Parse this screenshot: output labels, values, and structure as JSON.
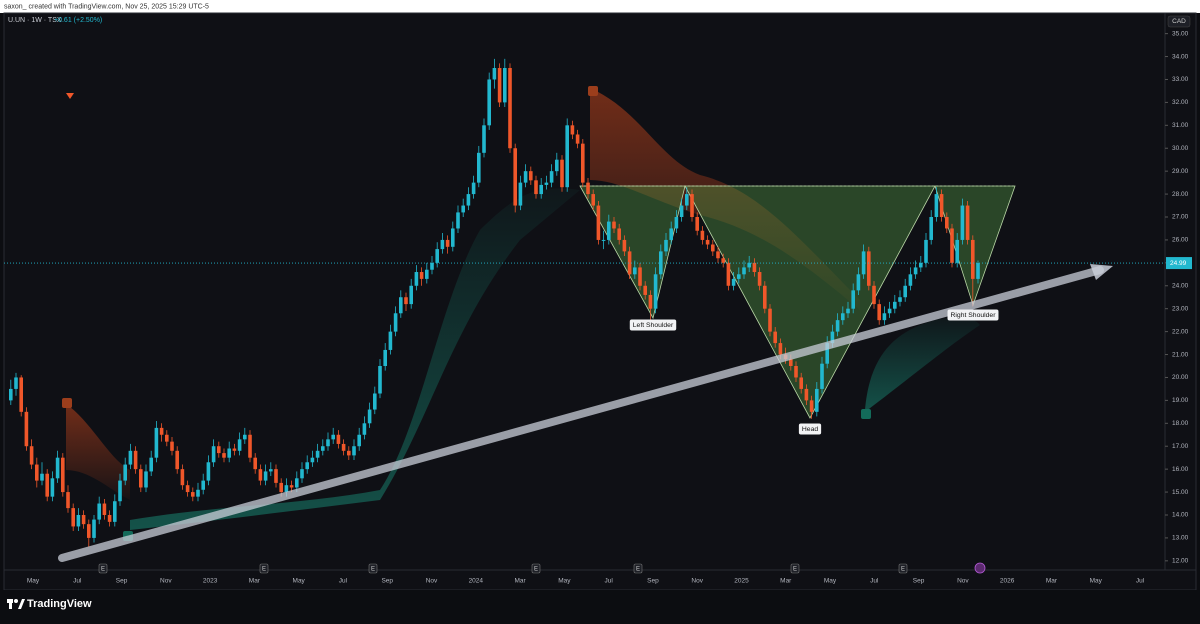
{
  "header": {
    "credit": "saxon_ created with TradingView.com, Nov 25, 2025 15:29 UTC-5"
  },
  "chart_data": {
    "type": "candlestick",
    "title": "U.UN · 1W · TSX",
    "change": "+0.61 (+2.50%)",
    "currency": "CAD",
    "up_color": "#22b8cf",
    "down_color": "#f0572a",
    "ylim": [
      11.6,
      35.9
    ],
    "yticks": [
      {
        "value": 12,
        "label": "12.00"
      },
      {
        "value": 13,
        "label": "13.00"
      },
      {
        "value": 14,
        "label": "14.00"
      },
      {
        "value": 15,
        "label": "15.00"
      },
      {
        "value": 16,
        "label": "16.00"
      },
      {
        "value": 17,
        "label": "17.00"
      },
      {
        "value": 18,
        "label": "18.00"
      },
      {
        "value": 19,
        "label": "19.00"
      },
      {
        "value": 20,
        "label": "20.00"
      },
      {
        "value": 21,
        "label": "21.00"
      },
      {
        "value": 22,
        "label": "22.00"
      },
      {
        "value": 23,
        "label": "23.00"
      },
      {
        "value": 24,
        "label": "24.00"
      },
      {
        "value": 25,
        "label": "25.00"
      },
      {
        "value": 26,
        "label": "26.00"
      },
      {
        "value": 27,
        "label": "27.00"
      },
      {
        "value": 28,
        "label": "28.00"
      },
      {
        "value": 29,
        "label": "29.00"
      },
      {
        "value": 30,
        "label": "30.00"
      },
      {
        "value": 31,
        "label": "31.00"
      },
      {
        "value": 32,
        "label": "32.00"
      },
      {
        "value": 33,
        "label": "33.00"
      },
      {
        "value": 34,
        "label": "34.00"
      },
      {
        "value": 35,
        "label": "35.00"
      }
    ],
    "last_price": {
      "value": 24.99,
      "label": "24.99"
    },
    "x_labels": [
      "May",
      "Jul",
      "Sep",
      "Nov",
      "2023",
      "Mar",
      "May",
      "Jul",
      "Sep",
      "Nov",
      "2024",
      "Mar",
      "May",
      "Jul",
      "Sep",
      "Nov",
      "2025",
      "Mar",
      "May",
      "Jul",
      "Sep",
      "Nov",
      "2026",
      "Mar",
      "May",
      "Jul"
    ],
    "events": [
      "E",
      "E",
      "E",
      "E",
      "E",
      "E",
      "E"
    ],
    "annotations": [
      "Left Shoulder",
      "Head",
      "Right Shoulder"
    ],
    "candles": [
      [
        19.0,
        19.9,
        18.8,
        19.5
      ],
      [
        19.5,
        20.2,
        19.2,
        20.0
      ],
      [
        20.0,
        20.1,
        18.3,
        18.5
      ],
      [
        18.5,
        18.7,
        16.8,
        17.0
      ],
      [
        17.0,
        17.3,
        16.0,
        16.2
      ],
      [
        16.2,
        16.5,
        15.2,
        15.5
      ],
      [
        15.5,
        16.3,
        15.3,
        15.8
      ],
      [
        15.8,
        16.0,
        14.6,
        14.8
      ],
      [
        14.8,
        15.9,
        14.6,
        15.6
      ],
      [
        15.6,
        16.8,
        15.4,
        16.5
      ],
      [
        16.5,
        16.7,
        14.8,
        15.0
      ],
      [
        15.0,
        15.3,
        14.1,
        14.3
      ],
      [
        14.3,
        14.5,
        13.3,
        13.5
      ],
      [
        13.5,
        14.3,
        13.3,
        14.0
      ],
      [
        14.0,
        14.2,
        13.4,
        13.6
      ],
      [
        13.6,
        13.8,
        12.6,
        13.0
      ],
      [
        13.0,
        14.0,
        12.8,
        13.8
      ],
      [
        13.8,
        14.8,
        13.6,
        14.5
      ],
      [
        14.5,
        14.7,
        13.8,
        14.0
      ],
      [
        14.0,
        14.2,
        13.5,
        13.7
      ],
      [
        13.7,
        14.9,
        13.5,
        14.6
      ],
      [
        14.6,
        15.8,
        14.4,
        15.5
      ],
      [
        15.5,
        16.5,
        15.3,
        16.2
      ],
      [
        16.2,
        17.1,
        16.0,
        16.8
      ],
      [
        16.8,
        17.0,
        15.8,
        16.0
      ],
      [
        16.0,
        16.2,
        15.0,
        15.2
      ],
      [
        15.2,
        16.2,
        15.0,
        15.9
      ],
      [
        15.9,
        16.8,
        15.7,
        16.5
      ],
      [
        16.5,
        18.1,
        16.3,
        17.8
      ],
      [
        17.8,
        18.0,
        17.2,
        17.5
      ],
      [
        17.5,
        17.7,
        17.0,
        17.2
      ],
      [
        17.2,
        17.4,
        16.6,
        16.8
      ],
      [
        16.8,
        17.0,
        15.8,
        16.0
      ],
      [
        16.0,
        16.2,
        15.1,
        15.3
      ],
      [
        15.3,
        15.5,
        14.8,
        15.0
      ],
      [
        15.0,
        15.2,
        14.6,
        14.8
      ],
      [
        14.8,
        15.4,
        14.6,
        15.1
      ],
      [
        15.1,
        15.8,
        14.9,
        15.5
      ],
      [
        15.5,
        16.6,
        15.3,
        16.3
      ],
      [
        16.3,
        17.3,
        16.1,
        17.0
      ],
      [
        17.0,
        17.2,
        16.5,
        16.7
      ],
      [
        16.7,
        16.9,
        16.3,
        16.5
      ],
      [
        16.5,
        17.2,
        16.3,
        16.9
      ],
      [
        16.9,
        17.1,
        16.6,
        16.8
      ],
      [
        16.8,
        17.6,
        16.6,
        17.3
      ],
      [
        17.3,
        17.8,
        17.1,
        17.5
      ],
      [
        17.5,
        17.7,
        16.3,
        16.5
      ],
      [
        16.5,
        16.7,
        15.8,
        16.0
      ],
      [
        16.0,
        16.2,
        15.3,
        15.5
      ],
      [
        15.5,
        16.2,
        15.3,
        15.9
      ],
      [
        15.9,
        16.3,
        15.7,
        16.0
      ],
      [
        16.0,
        16.2,
        15.2,
        15.4
      ],
      [
        15.4,
        15.6,
        14.8,
        15.0
      ],
      [
        15.0,
        15.6,
        14.8,
        15.3
      ],
      [
        15.3,
        15.5,
        15.0,
        15.2
      ],
      [
        15.2,
        15.9,
        15.0,
        15.6
      ],
      [
        15.6,
        16.3,
        15.4,
        16.0
      ],
      [
        16.0,
        16.6,
        15.8,
        16.3
      ],
      [
        16.3,
        16.8,
        16.1,
        16.5
      ],
      [
        16.5,
        17.1,
        16.3,
        16.8
      ],
      [
        16.8,
        17.3,
        16.6,
        17.0
      ],
      [
        17.0,
        17.6,
        16.8,
        17.3
      ],
      [
        17.3,
        17.8,
        17.1,
        17.5
      ],
      [
        17.5,
        17.7,
        16.9,
        17.1
      ],
      [
        17.1,
        17.3,
        16.6,
        16.8
      ],
      [
        16.8,
        17.0,
        16.4,
        16.6
      ],
      [
        16.6,
        17.3,
        16.4,
        17.0
      ],
      [
        17.0,
        17.8,
        16.8,
        17.5
      ],
      [
        17.5,
        18.3,
        17.3,
        18.0
      ],
      [
        18.0,
        18.9,
        17.8,
        18.6
      ],
      [
        18.6,
        19.6,
        18.4,
        19.3
      ],
      [
        19.3,
        20.8,
        19.1,
        20.5
      ],
      [
        20.5,
        21.5,
        20.3,
        21.2
      ],
      [
        21.2,
        22.3,
        21.0,
        22.0
      ],
      [
        22.0,
        23.1,
        21.8,
        22.8
      ],
      [
        22.8,
        23.8,
        22.6,
        23.5
      ],
      [
        23.5,
        23.7,
        22.9,
        23.2
      ],
      [
        23.2,
        24.3,
        23.0,
        24.0
      ],
      [
        24.0,
        24.9,
        23.8,
        24.6
      ],
      [
        24.6,
        24.8,
        24.0,
        24.3
      ],
      [
        24.3,
        25.0,
        24.1,
        24.7
      ],
      [
        24.7,
        25.3,
        24.5,
        25.0
      ],
      [
        25.0,
        25.9,
        24.8,
        25.6
      ],
      [
        25.6,
        26.3,
        25.4,
        26.0
      ],
      [
        26.0,
        26.2,
        25.4,
        25.7
      ],
      [
        25.7,
        26.8,
        25.5,
        26.5
      ],
      [
        26.5,
        27.5,
        26.3,
        27.2
      ],
      [
        27.2,
        27.8,
        27.0,
        27.5
      ],
      [
        27.5,
        28.3,
        27.3,
        28.0
      ],
      [
        28.0,
        28.8,
        27.8,
        28.5
      ],
      [
        28.5,
        30.1,
        28.3,
        29.8
      ],
      [
        29.8,
        31.3,
        29.6,
        31.0
      ],
      [
        31.0,
        33.3,
        30.8,
        33.0
      ],
      [
        33.0,
        33.9,
        32.6,
        33.5
      ],
      [
        33.5,
        33.7,
        31.8,
        32.0
      ],
      [
        32.0,
        33.9,
        31.8,
        33.5
      ],
      [
        33.5,
        33.7,
        29.8,
        30.0
      ],
      [
        30.0,
        30.2,
        27.2,
        27.5
      ],
      [
        27.5,
        28.8,
        27.3,
        28.5
      ],
      [
        28.5,
        29.3,
        28.3,
        29.0
      ],
      [
        29.0,
        29.2,
        28.4,
        28.6
      ],
      [
        28.6,
        28.8,
        27.8,
        28.0
      ],
      [
        28.0,
        28.7,
        27.8,
        28.4
      ],
      [
        28.4,
        28.8,
        28.2,
        28.5
      ],
      [
        28.5,
        29.3,
        28.3,
        29.0
      ],
      [
        29.0,
        29.8,
        28.8,
        29.5
      ],
      [
        29.5,
        29.7,
        28.1,
        28.3
      ],
      [
        28.3,
        31.3,
        28.1,
        31.0
      ],
      [
        31.0,
        31.2,
        30.4,
        30.6
      ],
      [
        30.6,
        30.8,
        30.0,
        30.2
      ],
      [
        30.2,
        30.4,
        28.3,
        28.5
      ],
      [
        28.5,
        28.7,
        27.8,
        28.0
      ],
      [
        28.0,
        28.2,
        27.3,
        27.5
      ],
      [
        27.5,
        27.7,
        25.8,
        26.0
      ],
      [
        26.0,
        26.4,
        25.6,
        26.0
      ],
      [
        26.0,
        27.1,
        25.8,
        26.8
      ],
      [
        26.8,
        27.0,
        26.3,
        26.5
      ],
      [
        26.5,
        26.7,
        25.8,
        26.0
      ],
      [
        26.0,
        26.2,
        25.3,
        25.5
      ],
      [
        25.5,
        25.7,
        24.3,
        24.5
      ],
      [
        24.5,
        25.1,
        24.3,
        24.8
      ],
      [
        24.8,
        25.0,
        23.8,
        24.0
      ],
      [
        24.0,
        24.2,
        23.4,
        23.6
      ],
      [
        23.6,
        23.8,
        22.5,
        23.0
      ],
      [
        23.0,
        24.8,
        22.8,
        24.5
      ],
      [
        24.5,
        25.8,
        24.3,
        25.5
      ],
      [
        25.5,
        26.3,
        25.3,
        26.0
      ],
      [
        26.0,
        26.8,
        25.8,
        26.5
      ],
      [
        26.5,
        27.3,
        26.3,
        27.0
      ],
      [
        27.0,
        27.8,
        26.8,
        27.5
      ],
      [
        27.5,
        28.3,
        27.3,
        28.0
      ],
      [
        28.0,
        28.2,
        26.8,
        27.0
      ],
      [
        27.0,
        27.2,
        26.2,
        26.4
      ],
      [
        26.4,
        26.6,
        25.8,
        26.0
      ],
      [
        26.0,
        26.2,
        25.6,
        25.8
      ],
      [
        25.8,
        26.0,
        25.3,
        25.5
      ],
      [
        25.5,
        25.7,
        25.0,
        25.2
      ],
      [
        25.2,
        25.4,
        24.8,
        25.0
      ],
      [
        25.0,
        25.2,
        23.8,
        24.0
      ],
      [
        24.0,
        24.6,
        23.8,
        24.3
      ],
      [
        24.3,
        24.8,
        24.1,
        24.5
      ],
      [
        24.5,
        25.1,
        24.3,
        24.8
      ],
      [
        24.8,
        25.3,
        24.6,
        25.0
      ],
      [
        25.0,
        25.2,
        24.4,
        24.6
      ],
      [
        24.6,
        24.8,
        23.8,
        24.0
      ],
      [
        24.0,
        24.2,
        22.8,
        23.0
      ],
      [
        23.0,
        23.2,
        21.8,
        22.0
      ],
      [
        22.0,
        22.2,
        21.3,
        21.5
      ],
      [
        21.5,
        21.7,
        20.8,
        21.0
      ],
      [
        21.0,
        21.3,
        20.6,
        20.8
      ],
      [
        20.8,
        21.0,
        20.3,
        20.5
      ],
      [
        20.5,
        20.7,
        19.8,
        20.0
      ],
      [
        20.0,
        20.2,
        19.3,
        19.5
      ],
      [
        19.5,
        19.7,
        18.8,
        19.0
      ],
      [
        19.0,
        19.2,
        18.2,
        18.5
      ],
      [
        18.5,
        19.8,
        18.3,
        19.5
      ],
      [
        19.5,
        20.9,
        19.3,
        20.6
      ],
      [
        20.6,
        21.8,
        20.4,
        21.5
      ],
      [
        21.5,
        22.3,
        21.3,
        22.0
      ],
      [
        22.0,
        22.8,
        21.8,
        22.5
      ],
      [
        22.5,
        23.1,
        22.3,
        22.8
      ],
      [
        22.8,
        23.3,
        22.6,
        23.0
      ],
      [
        23.0,
        24.1,
        22.8,
        23.8
      ],
      [
        23.8,
        24.8,
        23.6,
        24.5
      ],
      [
        24.5,
        25.8,
        24.3,
        25.5
      ],
      [
        25.5,
        25.7,
        23.8,
        24.0
      ],
      [
        24.0,
        24.2,
        23.0,
        23.2
      ],
      [
        23.2,
        23.4,
        22.3,
        22.5
      ],
      [
        22.5,
        23.1,
        22.3,
        22.8
      ],
      [
        22.8,
        23.3,
        22.6,
        23.0
      ],
      [
        23.0,
        23.6,
        22.8,
        23.3
      ],
      [
        23.3,
        23.8,
        23.1,
        23.5
      ],
      [
        23.5,
        24.3,
        23.3,
        24.0
      ],
      [
        24.0,
        24.8,
        23.8,
        24.5
      ],
      [
        24.5,
        25.1,
        24.3,
        24.8
      ],
      [
        24.8,
        25.3,
        24.6,
        25.0
      ],
      [
        25.0,
        26.3,
        24.8,
        26.0
      ],
      [
        26.0,
        27.3,
        25.8,
        27.0
      ],
      [
        27.0,
        28.3,
        26.8,
        28.0
      ],
      [
        28.0,
        28.2,
        26.8,
        27.0
      ],
      [
        27.0,
        27.2,
        26.3,
        26.5
      ],
      [
        26.5,
        26.7,
        24.8,
        25.0
      ],
      [
        25.0,
        26.3,
        24.8,
        26.0
      ],
      [
        26.0,
        27.8,
        25.8,
        27.5
      ],
      [
        27.5,
        27.7,
        25.8,
        26.0
      ],
      [
        26.0,
        26.2,
        23.1,
        24.3
      ],
      [
        24.3,
        25.1,
        24.1,
        24.99
      ]
    ]
  },
  "footer": {
    "brand": "TradingView"
  }
}
